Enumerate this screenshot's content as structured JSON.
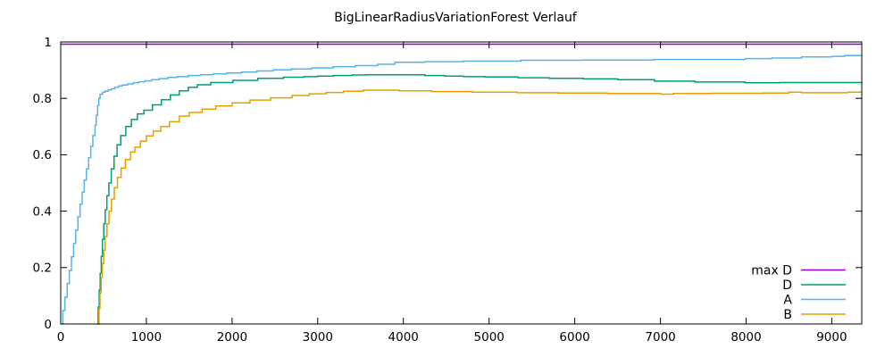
{
  "chart_data": {
    "type": "line",
    "title": "BigLinearRadiusVariationForest Verlauf",
    "xlabel": "",
    "ylabel": "",
    "xlim": [
      0,
      9350
    ],
    "ylim": [
      0,
      1
    ],
    "grid": false,
    "legend_position": "inside-bottom-right",
    "x_ticks": [
      0,
      1000,
      2000,
      3000,
      4000,
      5000,
      6000,
      7000,
      8000,
      9000
    ],
    "x_tick_labels": [
      "0",
      "1000",
      "2000",
      "3000",
      "4000",
      "5000",
      "6000",
      "7000",
      "8000",
      "9000"
    ],
    "y_ticks": [
      0,
      0.2,
      0.4,
      0.6,
      0.8,
      1
    ],
    "y_tick_labels": [
      "0",
      "0.2",
      "0.4",
      "0.6",
      "0.8",
      "1"
    ],
    "axis_color": "#000000",
    "background_color": "#ffffff",
    "series": [
      {
        "name": "max D",
        "color": "#9400d3",
        "points": [
          [
            0,
            0.992
          ],
          [
            9350,
            0.992
          ]
        ]
      },
      {
        "name": "D",
        "color": "#009e73",
        "points": [
          [
            425,
            0
          ],
          [
            437,
            0.06
          ],
          [
            449,
            0.12
          ],
          [
            461,
            0.18
          ],
          [
            473,
            0.24
          ],
          [
            487,
            0.3
          ],
          [
            502,
            0.355
          ],
          [
            519,
            0.405
          ],
          [
            539,
            0.455
          ],
          [
            562,
            0.5
          ],
          [
            590,
            0.55
          ],
          [
            622,
            0.595
          ],
          [
            658,
            0.635
          ],
          [
            700,
            0.668
          ],
          [
            760,
            0.7
          ],
          [
            825,
            0.725
          ],
          [
            895,
            0.745
          ],
          [
            970,
            0.758
          ],
          [
            1070,
            0.777
          ],
          [
            1175,
            0.795
          ],
          [
            1280,
            0.812
          ],
          [
            1385,
            0.827
          ],
          [
            1490,
            0.839
          ],
          [
            1595,
            0.848
          ],
          [
            1750,
            0.856
          ],
          [
            2010,
            0.864
          ],
          [
            2300,
            0.871
          ],
          [
            2600,
            0.875
          ],
          [
            2840,
            0.877
          ],
          [
            3000,
            0.879
          ],
          [
            3190,
            0.881
          ],
          [
            3400,
            0.883
          ],
          [
            3560,
            0.884
          ],
          [
            4000,
            0.884
          ],
          [
            4250,
            0.881
          ],
          [
            4480,
            0.879
          ],
          [
            4700,
            0.877
          ],
          [
            4950,
            0.876
          ],
          [
            5340,
            0.873
          ],
          [
            5700,
            0.871
          ],
          [
            6100,
            0.869
          ],
          [
            6500,
            0.866
          ],
          [
            6930,
            0.861
          ],
          [
            7400,
            0.858
          ],
          [
            7990,
            0.855
          ],
          [
            8400,
            0.856
          ],
          [
            9000,
            0.856
          ],
          [
            9350,
            0.857
          ]
        ]
      },
      {
        "name": "A",
        "color": "#56b4e9",
        "points": [
          [
            0,
            0
          ],
          [
            25,
            0.048
          ],
          [
            50,
            0.095
          ],
          [
            75,
            0.143
          ],
          [
            100,
            0.19
          ],
          [
            125,
            0.238
          ],
          [
            150,
            0.285
          ],
          [
            175,
            0.333
          ],
          [
            200,
            0.38
          ],
          [
            225,
            0.425
          ],
          [
            250,
            0.468
          ],
          [
            275,
            0.51
          ],
          [
            300,
            0.55
          ],
          [
            325,
            0.59
          ],
          [
            350,
            0.63
          ],
          [
            375,
            0.668
          ],
          [
            400,
            0.705
          ],
          [
            415,
            0.74
          ],
          [
            430,
            0.775
          ],
          [
            445,
            0.8
          ],
          [
            460,
            0.815
          ],
          [
            490,
            0.822
          ],
          [
            520,
            0.826
          ],
          [
            555,
            0.83
          ],
          [
            590,
            0.834
          ],
          [
            630,
            0.839
          ],
          [
            675,
            0.844
          ],
          [
            720,
            0.847
          ],
          [
            780,
            0.851
          ],
          [
            845,
            0.855
          ],
          [
            910,
            0.859
          ],
          [
            980,
            0.862
          ],
          [
            1060,
            0.866
          ],
          [
            1150,
            0.87
          ],
          [
            1250,
            0.874
          ],
          [
            1360,
            0.877
          ],
          [
            1490,
            0.881
          ],
          [
            1630,
            0.884
          ],
          [
            1780,
            0.887
          ],
          [
            1940,
            0.89
          ],
          [
            2110,
            0.893
          ],
          [
            2290,
            0.897
          ],
          [
            2480,
            0.901
          ],
          [
            2690,
            0.904
          ],
          [
            2930,
            0.908
          ],
          [
            3180,
            0.912
          ],
          [
            3440,
            0.916
          ],
          [
            3700,
            0.921
          ],
          [
            3900,
            0.928
          ],
          [
            4250,
            0.93
          ],
          [
            4700,
            0.932
          ],
          [
            5370,
            0.935
          ],
          [
            6100,
            0.936
          ],
          [
            6930,
            0.938
          ],
          [
            7990,
            0.941
          ],
          [
            8300,
            0.943
          ],
          [
            8650,
            0.947
          ],
          [
            9000,
            0.949
          ],
          [
            9150,
            0.952
          ],
          [
            9350,
            0.952
          ]
        ]
      },
      {
        "name": "B",
        "color": "#e69f00",
        "points": [
          [
            435,
            0
          ],
          [
            447,
            0.055
          ],
          [
            459,
            0.11
          ],
          [
            472,
            0.165
          ],
          [
            486,
            0.215
          ],
          [
            501,
            0.262
          ],
          [
            519,
            0.31
          ],
          [
            540,
            0.355
          ],
          [
            564,
            0.4
          ],
          [
            592,
            0.443
          ],
          [
            625,
            0.483
          ],
          [
            662,
            0.52
          ],
          [
            705,
            0.553
          ],
          [
            755,
            0.583
          ],
          [
            815,
            0.61
          ],
          [
            865,
            0.627
          ],
          [
            930,
            0.648
          ],
          [
            1000,
            0.667
          ],
          [
            1080,
            0.684
          ],
          [
            1170,
            0.7
          ],
          [
            1270,
            0.717
          ],
          [
            1385,
            0.737
          ],
          [
            1500,
            0.75
          ],
          [
            1650,
            0.762
          ],
          [
            1810,
            0.773
          ],
          [
            2000,
            0.784
          ],
          [
            2210,
            0.794
          ],
          [
            2450,
            0.802
          ],
          [
            2700,
            0.81
          ],
          [
            2900,
            0.816
          ],
          [
            3100,
            0.821
          ],
          [
            3300,
            0.825
          ],
          [
            3530,
            0.829
          ],
          [
            3800,
            0.829
          ],
          [
            3950,
            0.827
          ],
          [
            4330,
            0.824
          ],
          [
            4800,
            0.822
          ],
          [
            5330,
            0.82
          ],
          [
            5800,
            0.819
          ],
          [
            6380,
            0.817
          ],
          [
            6850,
            0.817
          ],
          [
            7000,
            0.815
          ],
          [
            7150,
            0.817
          ],
          [
            7600,
            0.818
          ],
          [
            8200,
            0.819
          ],
          [
            8500,
            0.822
          ],
          [
            8650,
            0.82
          ],
          [
            9190,
            0.822
          ],
          [
            9350,
            0.822
          ]
        ]
      }
    ]
  }
}
